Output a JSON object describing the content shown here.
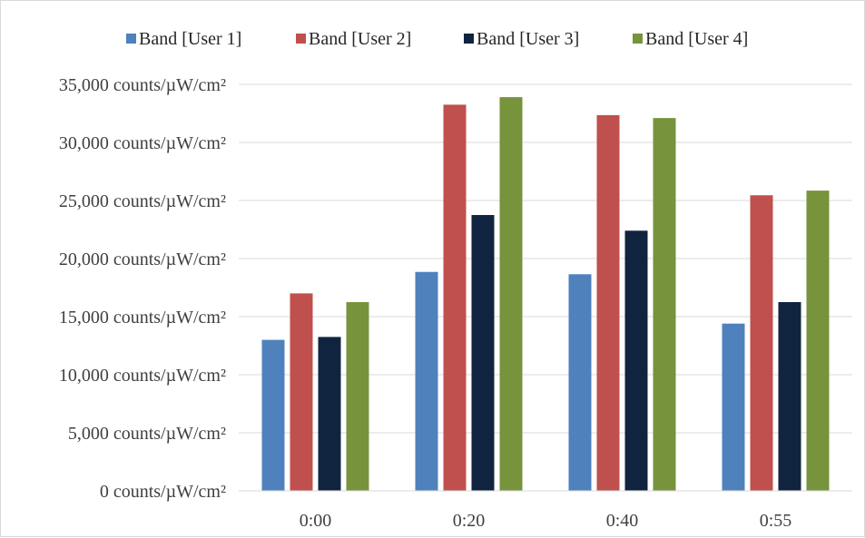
{
  "chart_data": {
    "type": "bar",
    "title": "",
    "xlabel": "",
    "ylabel": "",
    "categories": [
      "0:00",
      "0:20",
      "0:40",
      "0:55"
    ],
    "series": [
      {
        "name": "Band [User 1]",
        "color": "#4f81bd",
        "values": [
          13000,
          18850,
          18650,
          14400
        ]
      },
      {
        "name": "Band [User 2]",
        "color": "#c0504d",
        "values": [
          17000,
          33250,
          32350,
          25450
        ]
      },
      {
        "name": "Band [User 3]",
        "color": "#10243f",
        "values": [
          13250,
          23750,
          22400,
          16250
        ]
      },
      {
        "name": "Band [User 4]",
        "color": "#77933c",
        "values": [
          16250,
          33900,
          32100,
          25850
        ]
      }
    ],
    "ylim": [
      0,
      35000
    ],
    "yticks": [
      0,
      5000,
      10000,
      15000,
      20000,
      25000,
      30000,
      35000
    ],
    "ytick_labels": [
      "0 counts/µW/cm²",
      "5,000 counts/µW/cm²",
      "10,000 counts/µW/cm²",
      "15,000 counts/µW/cm²",
      "20,000 counts/µW/cm²",
      "25,000 counts/µW/cm²",
      "30,000 counts/µW/cm²",
      "35,000 counts/µW/cm²"
    ],
    "grid": true,
    "legend_position": "top"
  }
}
